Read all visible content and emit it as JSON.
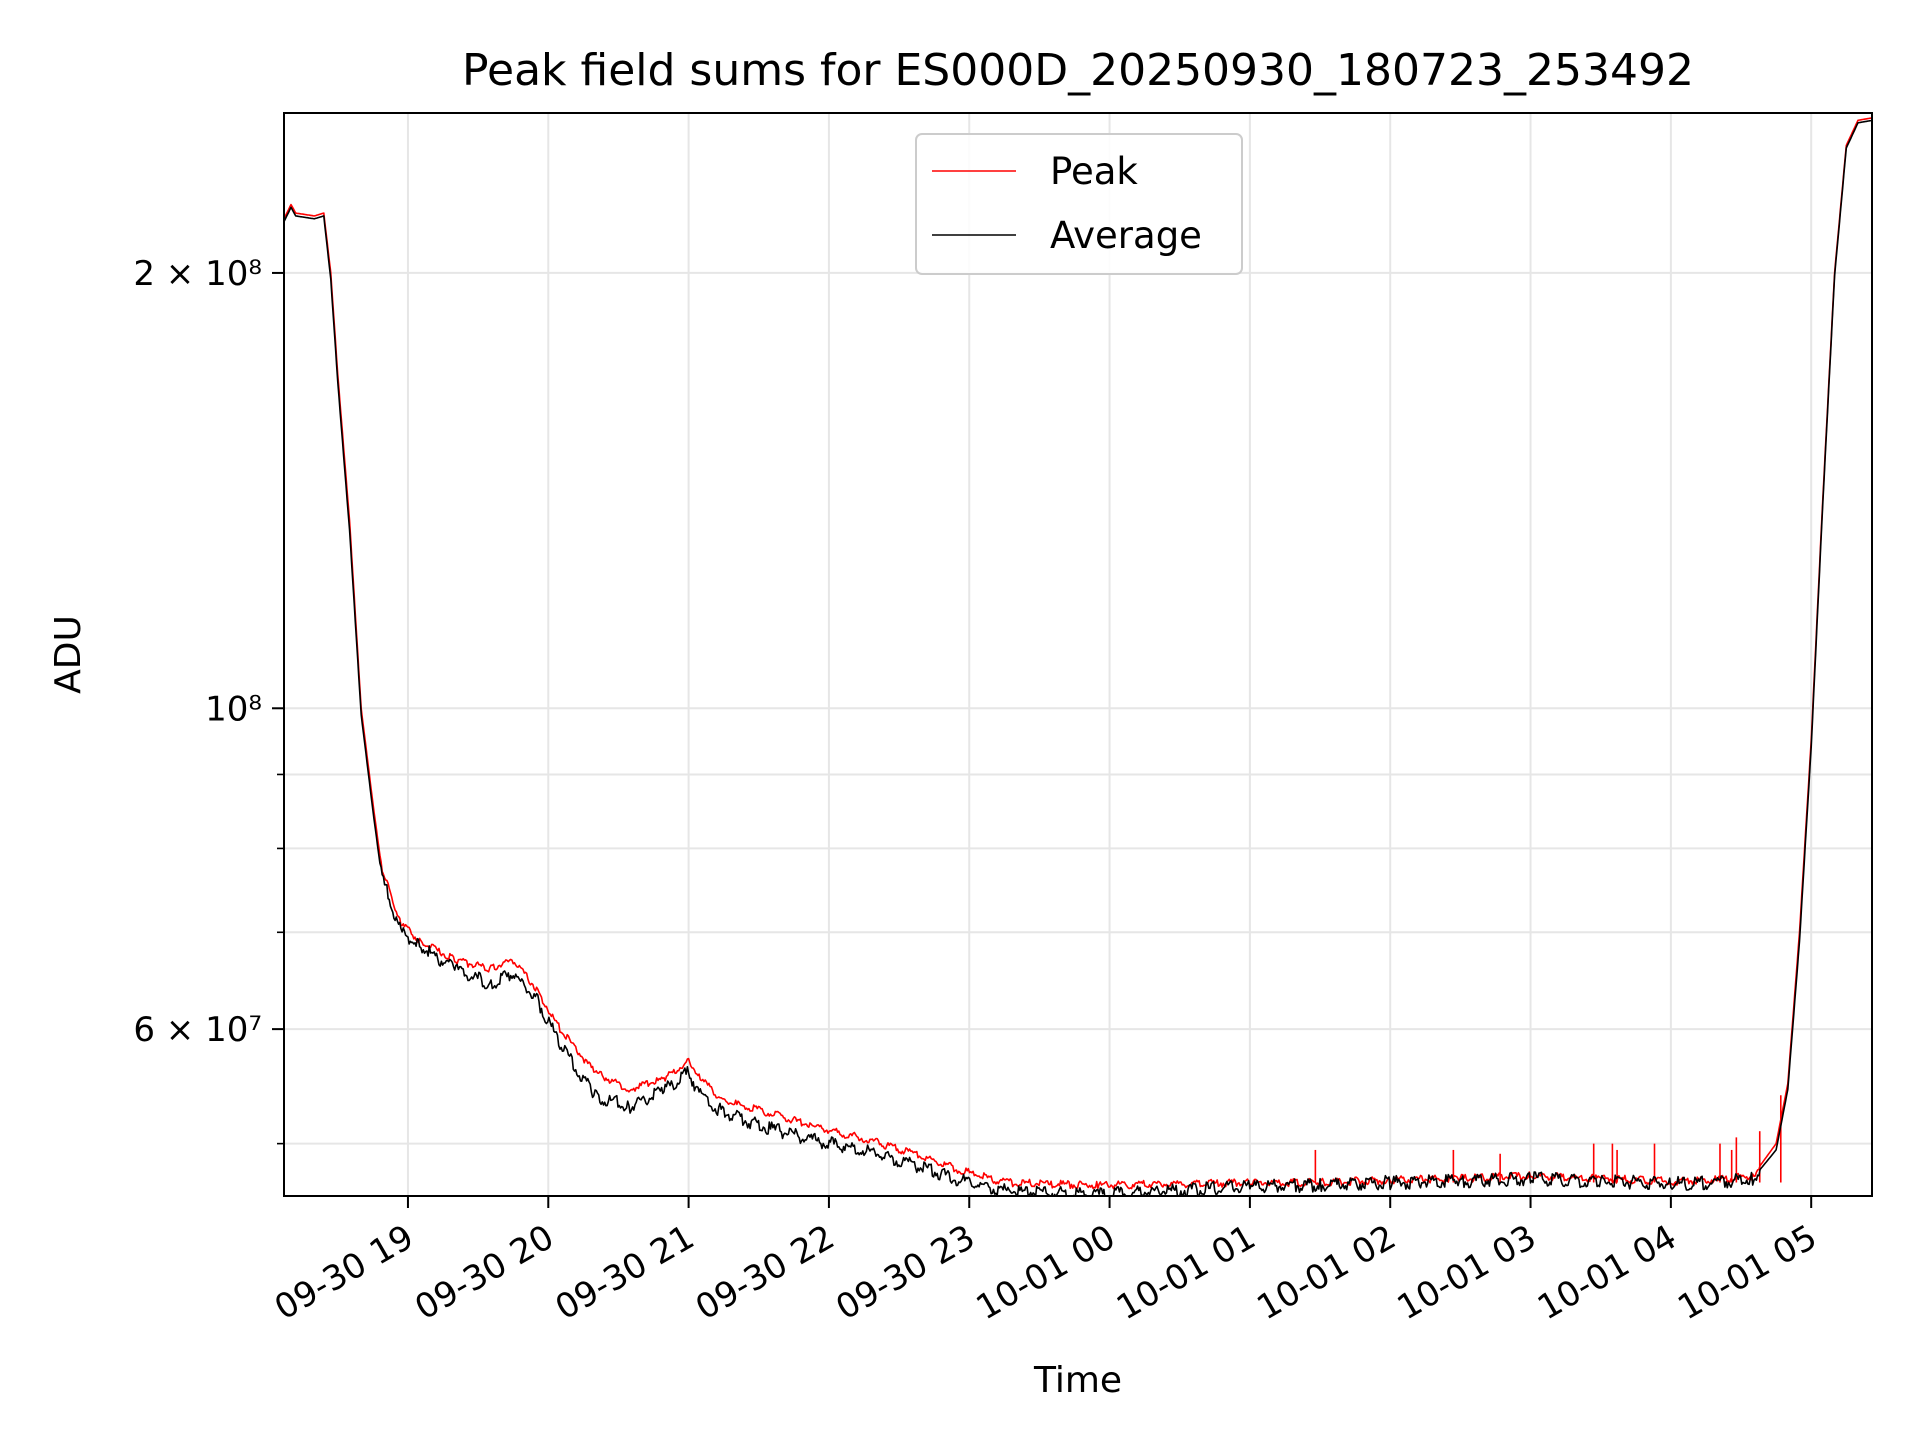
{
  "chart_data": {
    "type": "line",
    "title": "Peak field sums for ES000D_20250930_180723_253492",
    "xlabel": "Time",
    "ylabel": "ADU",
    "x_range": [
      "2025-09-30 18:07",
      "2025-10-01 05:26"
    ],
    "y_range": [
      46000000,
      258000000
    ],
    "y_scale": "log",
    "grid": true,
    "legend_position": "upper center",
    "x_ticks": [
      {
        "value": "2025-09-30 19:00",
        "label": "09-30 19"
      },
      {
        "value": "2025-09-30 20:00",
        "label": "09-30 20"
      },
      {
        "value": "2025-09-30 21:00",
        "label": "09-30 21"
      },
      {
        "value": "2025-09-30 22:00",
        "label": "09-30 22"
      },
      {
        "value": "2025-09-30 23:00",
        "label": "09-30 23"
      },
      {
        "value": "2025-10-01 00:00",
        "label": "10-01 00"
      },
      {
        "value": "2025-10-01 01:00",
        "label": "10-01 01"
      },
      {
        "value": "2025-10-01 02:00",
        "label": "10-01 02"
      },
      {
        "value": "2025-10-01 03:00",
        "label": "10-01 03"
      },
      {
        "value": "2025-10-01 04:00",
        "label": "10-01 04"
      },
      {
        "value": "2025-10-01 05:00",
        "label": "10-01 05"
      }
    ],
    "y_ticks_major": [
      {
        "value": 60000000,
        "label": "6 × 10⁷"
      },
      {
        "value": 100000000,
        "label": "10⁸"
      },
      {
        "value": 200000000,
        "label": "2 × 10⁸"
      }
    ],
    "y_ticks_minor": [
      50000000,
      70000000,
      80000000,
      90000000
    ],
    "series": [
      {
        "name": "Peak",
        "color": "#ff0000",
        "x": [
          "2025-09-30 18:07",
          "2025-09-30 18:10",
          "2025-09-30 18:12",
          "2025-09-30 18:20",
          "2025-09-30 18:24",
          "2025-09-30 18:27",
          "2025-09-30 18:30",
          "2025-09-30 18:35",
          "2025-09-30 18:40",
          "2025-09-30 18:45",
          "2025-09-30 18:49",
          "2025-09-30 18:52",
          "2025-09-30 18:57",
          "2025-09-30 19:05",
          "2025-09-30 19:20",
          "2025-09-30 19:35",
          "2025-09-30 19:45",
          "2025-09-30 19:55",
          "2025-09-30 20:05",
          "2025-09-30 20:20",
          "2025-09-30 20:35",
          "2025-09-30 20:50",
          "2025-09-30 21:00",
          "2025-09-30 21:05",
          "2025-09-30 21:15",
          "2025-09-30 21:35",
          "2025-09-30 21:55",
          "2025-09-30 22:15",
          "2025-09-30 22:35",
          "2025-09-30 22:55",
          "2025-09-30 23:15",
          "2025-09-30 23:35",
          "2025-09-30 23:55",
          "2025-10-01 00:30",
          "2025-10-01 01:00",
          "2025-10-01 01:30",
          "2025-10-01 02:00",
          "2025-10-01 02:30",
          "2025-10-01 03:00",
          "2025-10-01 03:30",
          "2025-10-01 04:00",
          "2025-10-01 04:20",
          "2025-10-01 04:35",
          "2025-10-01 04:45",
          "2025-10-01 04:50",
          "2025-10-01 04:55",
          "2025-10-01 05:00",
          "2025-10-01 05:05",
          "2025-10-01 05:10",
          "2025-10-01 05:15",
          "2025-10-01 05:20",
          "2025-10-01 05:26"
        ],
        "values": [
          218000000,
          223000000,
          220000000,
          219000000,
          220000000,
          200000000,
          170000000,
          135000000,
          100000000,
          86000000,
          77000000,
          75000000,
          71000000,
          69000000,
          67000000,
          66000000,
          67000000,
          64000000,
          60000000,
          56000000,
          54500000,
          55500000,
          57000000,
          55500000,
          53500000,
          52500000,
          51300000,
          50400000,
          49300000,
          48000000,
          47000000,
          46900000,
          46800000,
          46900000,
          47000000,
          47000000,
          47200000,
          47300000,
          47500000,
          47300000,
          47100000,
          47200000,
          47500000,
          50000000,
          55000000,
          70000000,
          95000000,
          140000000,
          200000000,
          245000000,
          255000000,
          256000000
        ],
        "spikes": [
          {
            "x": "2025-10-01 01:28",
            "value": 49500000
          },
          {
            "x": "2025-10-01 02:27",
            "value": 49500000
          },
          {
            "x": "2025-10-01 02:47",
            "value": 49200000
          },
          {
            "x": "2025-10-01 03:27",
            "value": 50000000
          },
          {
            "x": "2025-10-01 03:35",
            "value": 50000000
          },
          {
            "x": "2025-10-01 03:37",
            "value": 49500000
          },
          {
            "x": "2025-10-01 03:53",
            "value": 50000000
          },
          {
            "x": "2025-10-01 04:21",
            "value": 50000000
          },
          {
            "x": "2025-10-01 04:26",
            "value": 49500000
          },
          {
            "x": "2025-10-01 04:28",
            "value": 50500000
          },
          {
            "x": "2025-10-01 04:38",
            "value": 51000000
          },
          {
            "x": "2025-10-01 04:47",
            "value": 54000000
          }
        ]
      },
      {
        "name": "Average",
        "color": "#000000",
        "x": [
          "2025-09-30 18:07",
          "2025-09-30 18:10",
          "2025-09-30 18:12",
          "2025-09-30 18:20",
          "2025-09-30 18:24",
          "2025-09-30 18:27",
          "2025-09-30 18:30",
          "2025-09-30 18:35",
          "2025-09-30 18:40",
          "2025-09-30 18:45",
          "2025-09-30 18:49",
          "2025-09-30 18:52",
          "2025-09-30 18:57",
          "2025-09-30 19:05",
          "2025-09-30 19:20",
          "2025-09-30 19:35",
          "2025-09-30 19:45",
          "2025-09-30 19:55",
          "2025-09-30 20:05",
          "2025-09-30 20:20",
          "2025-09-30 20:35",
          "2025-09-30 20:50",
          "2025-09-30 21:00",
          "2025-09-30 21:05",
          "2025-09-30 21:15",
          "2025-09-30 21:35",
          "2025-09-30 21:55",
          "2025-09-30 22:15",
          "2025-09-30 22:35",
          "2025-09-30 22:55",
          "2025-09-30 23:15",
          "2025-09-30 23:35",
          "2025-09-30 23:55",
          "2025-10-01 00:30",
          "2025-10-01 01:00",
          "2025-10-01 01:30",
          "2025-10-01 02:00",
          "2025-10-01 02:30",
          "2025-10-01 03:00",
          "2025-10-01 03:30",
          "2025-10-01 04:00",
          "2025-10-01 04:20",
          "2025-10-01 04:35",
          "2025-10-01 04:45",
          "2025-10-01 04:50",
          "2025-10-01 04:55",
          "2025-10-01 05:00",
          "2025-10-01 05:05",
          "2025-10-01 05:10",
          "2025-10-01 05:15",
          "2025-10-01 05:20",
          "2025-10-01 05:26"
        ],
        "values": [
          217000000,
          222000000,
          219000000,
          218000000,
          219000000,
          198000000,
          168000000,
          133000000,
          99000000,
          85000000,
          76000000,
          74000000,
          70000000,
          68500000,
          66000000,
          64500000,
          65500000,
          63000000,
          58500000,
          54000000,
          53000000,
          54500000,
          56000000,
          54000000,
          52500000,
          51200000,
          50200000,
          49500000,
          48400000,
          47200000,
          46400000,
          46200000,
          46100000,
          46400000,
          46700000,
          46800000,
          47000000,
          47100000,
          47300000,
          47100000,
          46900000,
          47000000,
          47300000,
          49500000,
          54500000,
          69000000,
          94000000,
          139000000,
          199000000,
          244000000,
          254000000,
          255000000
        ]
      }
    ]
  }
}
